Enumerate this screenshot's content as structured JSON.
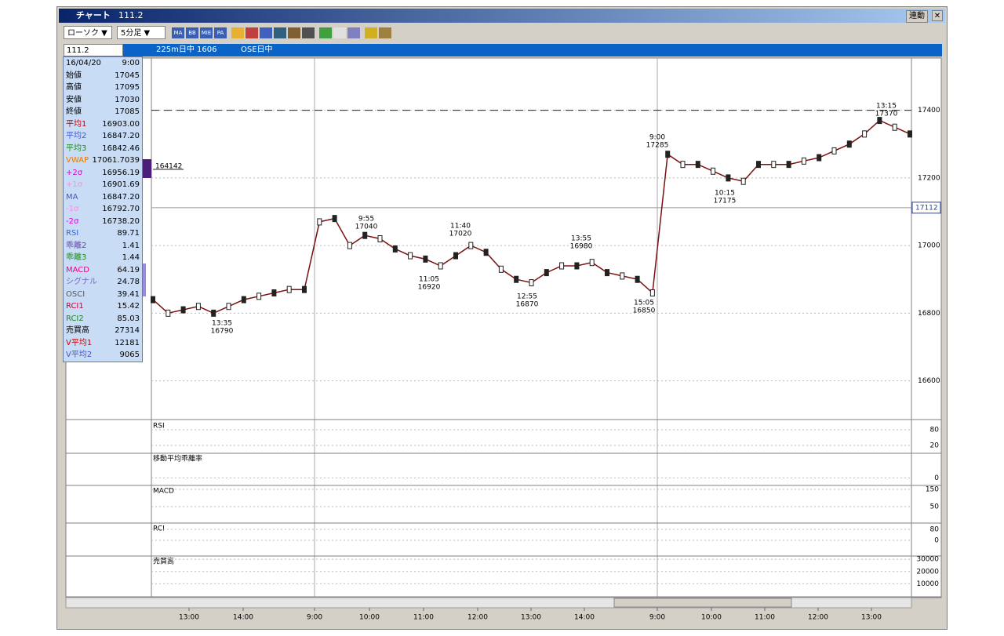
{
  "window": {
    "title": "チャート",
    "code": "111.2",
    "link_button": "連動",
    "close": "✕"
  },
  "toolbar": {
    "chart_style": "ローソク ▼",
    "interval": "5分足 ▼",
    "icons": [
      "MA",
      "BB",
      "MIE",
      "PA"
    ]
  },
  "infobar": {
    "code": "111.2",
    "instrument": "225m日中 1606",
    "session": "OSE日中"
  },
  "info_panel": {
    "date": "16/04/20",
    "time": "9:00",
    "rows": [
      {
        "label": "始値",
        "value": "17045",
        "color": "#000000"
      },
      {
        "label": "高値",
        "value": "17095",
        "color": "#000000"
      },
      {
        "label": "安値",
        "value": "17030",
        "color": "#000000"
      },
      {
        "label": "終値",
        "value": "17085",
        "color": "#000000"
      },
      {
        "label": "平均1",
        "value": "16903.00",
        "color": "#cc0000"
      },
      {
        "label": "平均2",
        "value": "16847.20",
        "color": "#4455cc"
      },
      {
        "label": "平均3",
        "value": "16842.46",
        "color": "#228822"
      },
      {
        "label": "VWAP",
        "value": "17061.7039",
        "color": "#ee7700"
      },
      {
        "label": "+2σ",
        "value": "16956.19",
        "color": "#dd00dd"
      },
      {
        "label": "+1σ",
        "value": "16901.69",
        "color": "#ff88ee"
      },
      {
        "label": "MA",
        "value": "16847.20",
        "color": "#4455cc"
      },
      {
        "label": "-1σ",
        "value": "16792.70",
        "color": "#ff88ee"
      },
      {
        "label": "-2σ",
        "value": "16738.20",
        "color": "#dd00dd"
      },
      {
        "label": "RSI",
        "value": "89.71",
        "color": "#3366dd"
      },
      {
        "label": "乖離2",
        "value": "1.41",
        "color": "#6644aa"
      },
      {
        "label": "乖離3",
        "value": "1.44",
        "color": "#228822"
      },
      {
        "label": "MACD",
        "value": "64.19",
        "color": "#ee0088"
      },
      {
        "label": "シグナル",
        "value": "24.78",
        "color": "#7766cc"
      },
      {
        "label": "OSCI",
        "value": "39.41",
        "color": "#555555"
      },
      {
        "label": "RCI1",
        "value": "15.42",
        "color": "#cc0033"
      },
      {
        "label": "RCI2",
        "value": "85.03",
        "color": "#228822"
      },
      {
        "label": "売買高",
        "value": "27314",
        "color": "#000000"
      },
      {
        "label": "V平均1",
        "value": "12181",
        "color": "#cc0000"
      },
      {
        "label": "V平均2",
        "value": "9065",
        "color": "#4455cc"
      }
    ]
  },
  "main_chart": {
    "ylim": [
      16490,
      17550
    ],
    "yticks": [
      16600,
      16800,
      17000,
      17200,
      17400
    ],
    "current_price": 17112,
    "reference_line": 17400,
    "marker_label": "164142",
    "price": {
      "color": "#7a1010",
      "values": [
        16840,
        16800,
        16810,
        16820,
        16800,
        16820,
        16840,
        16850,
        16860,
        16870,
        16870,
        17070,
        17080,
        17000,
        17030,
        17020,
        16990,
        16970,
        16960,
        16940,
        16970,
        17000,
        16980,
        16930,
        16900,
        16890,
        16920,
        16940,
        16940,
        16950,
        16920,
        16910,
        16900,
        16860,
        17270,
        17240,
        17240,
        17220,
        17200,
        17190,
        17240,
        17240,
        17240,
        17250,
        17260,
        17280,
        17300,
        17330,
        17370,
        17350,
        17330
      ]
    },
    "annotations": [
      {
        "time": "13:35",
        "price": 16790
      },
      {
        "time": "9:55",
        "price": 17040
      },
      {
        "time": "11:05",
        "price": 16920
      },
      {
        "time": "11:40",
        "price": 17020
      },
      {
        "time": "12:55",
        "price": 16870
      },
      {
        "time": "13:55",
        "price": 16980
      },
      {
        "time": "15:05",
        "price": 16850
      },
      {
        "time": "9:00",
        "price": 17285
      },
      {
        "time": "10:15",
        "price": 17175
      },
      {
        "time": "13:15",
        "price": 17370
      }
    ]
  },
  "sub_panels": [
    {
      "title": "RSI",
      "ylim": [
        -7,
        113
      ],
      "yticks": [
        80,
        20
      ]
    },
    {
      "title": "移動平均乖離率",
      "ylim": [
        -0.4,
        1.4
      ],
      "yticks": [
        0
      ]
    },
    {
      "title": "MACD",
      "ylim": [
        -41,
        168
      ],
      "yticks": [
        150,
        50
      ]
    },
    {
      "title": "RCI",
      "ylim": [
        -109,
        120
      ],
      "yticks": [
        80,
        0
      ]
    },
    {
      "title": "売買高",
      "ylim": [
        0,
        32000
      ],
      "yticks": [
        30000,
        20000,
        10000
      ]
    }
  ],
  "x_labels": [
    "13:00",
    "14:00",
    "9:00",
    "10:00",
    "11:00",
    "12:00",
    "13:00",
    "14:00",
    "9:00",
    "10:00",
    "11:00",
    "12:00",
    "13:00"
  ]
}
